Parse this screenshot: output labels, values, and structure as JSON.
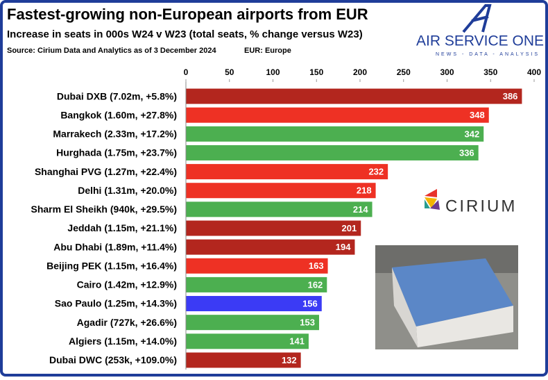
{
  "chart_data": {
    "type": "hbar",
    "title": "Fastest-growing non-European airports from EUR",
    "subtitle": "Increase in seats in 000s W24 v W23 (total seats, % change versus W23)",
    "source": "Source: Cirium Data and Analytics as of 3 December 2024",
    "note": "EUR: Europe",
    "categories": [
      "Dubai DXB (7.02m, +5.8%)",
      "Bangkok (1.60m, +27.8%)",
      "Marrakech (2.33m, +17.2%)",
      "Hurghada (1.75m, +23.7%)",
      "Shanghai PVG (1.27m, +22.4%)",
      "Delhi (1.31m, +20.0%)",
      "Sharm El Sheikh (940k, +29.5%)",
      "Jeddah (1.15m, +21.1%)",
      "Abu Dhabi (1.89m, +11.4%)",
      "Beijing PEK (1.15m, +16.4%)",
      "Cairo (1.42m, +12.9%)",
      "Sao Paulo (1.25m, +14.3%)",
      "Agadir (727k, +26.6%)",
      "Algiers (1.15m, +14.0%)",
      "Dubai DWC (253k, +109.0%)"
    ],
    "values": [
      386,
      348,
      342,
      336,
      232,
      218,
      214,
      201,
      194,
      163,
      162,
      156,
      153,
      141,
      132
    ],
    "colors": [
      "#b3261e",
      "#ee3124",
      "#4caf50",
      "#4caf50",
      "#ee3124",
      "#ee3124",
      "#4caf50",
      "#b3261e",
      "#b3261e",
      "#ee3124",
      "#4caf50",
      "#3b3bf5",
      "#4caf50",
      "#4caf50",
      "#b3261e"
    ],
    "xlim": [
      0,
      400
    ],
    "xticks": [
      0,
      50,
      100,
      150,
      200,
      250,
      300,
      350,
      400
    ],
    "grid": false
  },
  "logos": {
    "brand": "AIR SERVICE ONE",
    "tagline": "NEWS - DATA - ANALYSIS",
    "partner": "CIRIUM"
  }
}
